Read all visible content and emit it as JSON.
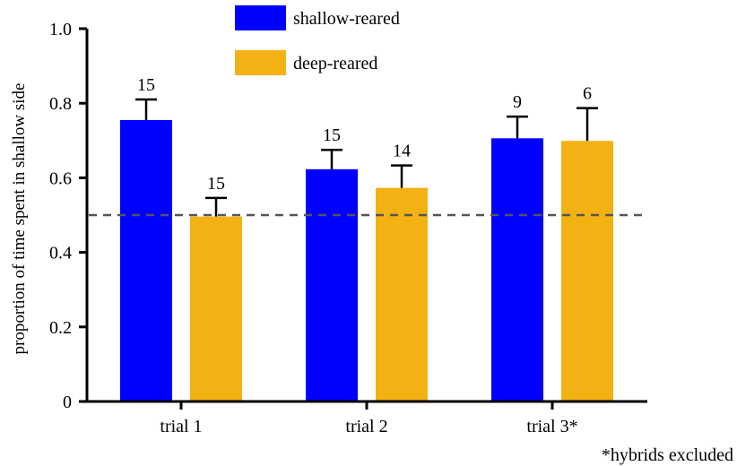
{
  "chart_data": {
    "type": "bar",
    "title": "",
    "xlabel": "",
    "ylabel": "proportion of time spent in shallow side",
    "ylim": [
      0,
      1.0
    ],
    "yticks": [
      {
        "value": 0,
        "label": "0"
      },
      {
        "value": 0.2,
        "label": "0.2"
      },
      {
        "value": 0.4,
        "label": "0.4"
      },
      {
        "value": 0.6,
        "label": "0.6"
      },
      {
        "value": 0.8,
        "label": "0.8"
      },
      {
        "value": 1.0,
        "label": "1.0"
      }
    ],
    "categories": [
      "trial 1",
      "trial 2",
      "trial 3*"
    ],
    "series": [
      {
        "name": "shallow-reared",
        "color": "#0000ff",
        "values": [
          0.755,
          0.623,
          0.706
        ],
        "error": [
          0.055,
          0.052,
          0.058
        ],
        "n_labels": [
          "15",
          "15",
          "9"
        ]
      },
      {
        "name": "deep-reared",
        "color": "#f2b214",
        "values": [
          0.496,
          0.573,
          0.699
        ],
        "error": [
          0.05,
          0.06,
          0.088
        ],
        "n_labels": [
          "15",
          "14",
          "6"
        ]
      }
    ],
    "reference_line": {
      "value": 0.5,
      "style": "dashed"
    },
    "legend_position": "top-center",
    "grid": false,
    "footnote": "*hybrids excluded"
  }
}
